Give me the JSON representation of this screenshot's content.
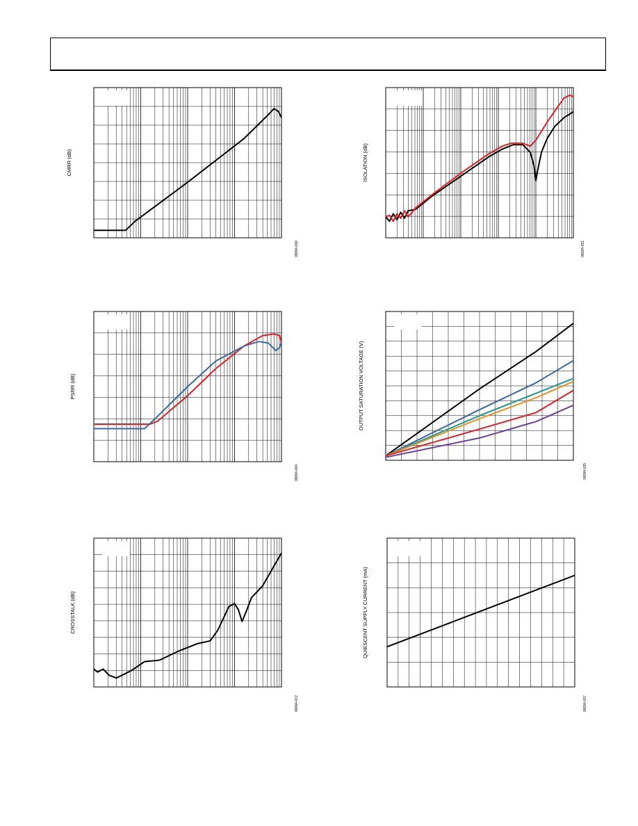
{
  "header": {
    "title": ""
  },
  "chart_data": [
    {
      "id": "cmrr",
      "type": "line",
      "title": "",
      "xlabel": "",
      "ylabel": "CMRR (dB)",
      "figure_id": "08094-030",
      "x_scale": "log",
      "x_decades": 4,
      "y_divisions": 8,
      "grid": true,
      "series": [
        {
          "color": "#000000",
          "points": [
            [
              0,
              0.05
            ],
            [
              0.17,
              0.05
            ],
            [
              0.22,
              0.11
            ],
            [
              0.5,
              0.37
            ],
            [
              0.8,
              0.66
            ],
            [
              0.93,
              0.82
            ],
            [
              0.96,
              0.86
            ],
            [
              0.985,
              0.84
            ],
            [
              1,
              0.8
            ]
          ]
        }
      ]
    },
    {
      "id": "isolation",
      "type": "line",
      "title": "",
      "xlabel": "",
      "ylabel": "ISOLATION (dB)",
      "figure_id": "08094-031",
      "x_scale": "log",
      "x_decades": 5,
      "y_divisions": 7,
      "grid": true,
      "series": [
        {
          "color": "#000000",
          "points": [
            [
              0,
              0.14
            ],
            [
              0.02,
              0.11
            ],
            [
              0.04,
              0.16
            ],
            [
              0.06,
              0.12
            ],
            [
              0.08,
              0.17
            ],
            [
              0.1,
              0.13
            ],
            [
              0.12,
              0.18
            ],
            [
              0.16,
              0.19
            ],
            [
              0.25,
              0.28
            ],
            [
              0.4,
              0.41
            ],
            [
              0.55,
              0.54
            ],
            [
              0.62,
              0.59
            ],
            [
              0.68,
              0.62
            ],
            [
              0.73,
              0.62
            ],
            [
              0.77,
              0.57
            ],
            [
              0.79,
              0.48
            ],
            [
              0.8,
              0.38
            ],
            [
              0.81,
              0.45
            ],
            [
              0.83,
              0.57
            ],
            [
              0.86,
              0.66
            ],
            [
              0.9,
              0.74
            ],
            [
              0.95,
              0.8
            ],
            [
              1,
              0.84
            ]
          ]
        },
        {
          "color": "#e41e26",
          "points": [
            [
              0,
              0.14
            ],
            [
              0.02,
              0.15
            ],
            [
              0.04,
              0.11
            ],
            [
              0.06,
              0.16
            ],
            [
              0.08,
              0.13
            ],
            [
              0.1,
              0.18
            ],
            [
              0.12,
              0.14
            ],
            [
              0.16,
              0.2
            ],
            [
              0.25,
              0.29
            ],
            [
              0.4,
              0.43
            ],
            [
              0.55,
              0.56
            ],
            [
              0.62,
              0.61
            ],
            [
              0.67,
              0.63
            ],
            [
              0.73,
              0.63
            ],
            [
              0.77,
              0.61
            ],
            [
              0.8,
              0.65
            ],
            [
              0.86,
              0.77
            ],
            [
              0.91,
              0.86
            ],
            [
              0.95,
              0.93
            ],
            [
              0.98,
              0.95
            ],
            [
              1,
              0.94
            ]
          ]
        }
      ]
    },
    {
      "id": "psrr",
      "type": "line",
      "title": "",
      "xlabel": "",
      "ylabel": "PSRR (dB)",
      "figure_id": "08094-034",
      "x_scale": "log",
      "x_decades": 4,
      "y_divisions": 7,
      "grid": true,
      "series": [
        {
          "color": "#e41e26",
          "points": [
            [
              0,
              0.25
            ],
            [
              0.3,
              0.25
            ],
            [
              0.34,
              0.27
            ],
            [
              0.5,
              0.44
            ],
            [
              0.65,
              0.62
            ],
            [
              0.8,
              0.77
            ],
            [
              0.9,
              0.84
            ],
            [
              0.96,
              0.85
            ],
            [
              0.99,
              0.84
            ],
            [
              1,
              0.79
            ]
          ]
        },
        {
          "color": "#3a67a8",
          "points": [
            [
              0,
              0.22
            ],
            [
              0.27,
              0.22
            ],
            [
              0.33,
              0.29
            ],
            [
              0.5,
              0.5
            ],
            [
              0.65,
              0.67
            ],
            [
              0.8,
              0.77
            ],
            [
              0.88,
              0.8
            ],
            [
              0.93,
              0.79
            ],
            [
              0.97,
              0.74
            ],
            [
              0.99,
              0.76
            ],
            [
              1,
              0.8
            ]
          ]
        }
      ]
    },
    {
      "id": "output-saturation",
      "type": "line",
      "title": "",
      "xlabel": "",
      "ylabel": "OUTPUT SATURATION VOLTAGE (V)",
      "figure_id": "08094-035",
      "x_scale": "linear",
      "x_divisions": 12,
      "y_divisions": 10,
      "grid": true,
      "series": [
        {
          "color": "#000000",
          "points": [
            [
              0,
              0.03
            ],
            [
              0.5,
              0.48
            ],
            [
              0.8,
              0.73
            ],
            [
              1,
              0.92
            ]
          ]
        },
        {
          "color": "#3a67a8",
          "points": [
            [
              0,
              0.03
            ],
            [
              0.5,
              0.34
            ],
            [
              0.8,
              0.52
            ],
            [
              1,
              0.67
            ]
          ]
        },
        {
          "color": "#1a9a8a",
          "points": [
            [
              0,
              0.03
            ],
            [
              0.5,
              0.3
            ],
            [
              0.8,
              0.45
            ],
            [
              1,
              0.55
            ]
          ]
        },
        {
          "color": "#f08c1e",
          "points": [
            [
              0,
              0.03
            ],
            [
              0.5,
              0.28
            ],
            [
              0.8,
              0.42
            ],
            [
              1,
              0.53
            ]
          ]
        },
        {
          "color": "#e41e26",
          "points": [
            [
              0,
              0.03
            ],
            [
              0.5,
              0.21
            ],
            [
              0.8,
              0.32
            ],
            [
              1,
              0.47
            ]
          ]
        },
        {
          "color": "#6b3fa0",
          "points": [
            [
              0,
              0.02
            ],
            [
              0.5,
              0.15
            ],
            [
              0.8,
              0.26
            ],
            [
              1,
              0.37
            ]
          ]
        }
      ]
    },
    {
      "id": "crosstalk",
      "type": "line",
      "title": "",
      "xlabel": "",
      "ylabel": "CROSSTALK (dB)",
      "figure_id": "08094-072",
      "x_scale": "log",
      "x_decades": 4,
      "y_divisions": 9,
      "grid": true,
      "series": [
        {
          "color": "#000000",
          "points": [
            [
              0,
              0.12
            ],
            [
              0.02,
              0.1
            ],
            [
              0.05,
              0.12
            ],
            [
              0.08,
              0.08
            ],
            [
              0.12,
              0.06
            ],
            [
              0.2,
              0.11
            ],
            [
              0.27,
              0.17
            ],
            [
              0.35,
              0.18
            ],
            [
              0.45,
              0.24
            ],
            [
              0.55,
              0.29
            ],
            [
              0.62,
              0.31
            ],
            [
              0.66,
              0.38
            ],
            [
              0.69,
              0.46
            ],
            [
              0.72,
              0.54
            ],
            [
              0.75,
              0.56
            ],
            [
              0.77,
              0.52
            ],
            [
              0.79,
              0.44
            ],
            [
              0.81,
              0.5
            ],
            [
              0.84,
              0.6
            ],
            [
              0.9,
              0.68
            ],
            [
              0.95,
              0.79
            ],
            [
              1,
              0.9
            ]
          ]
        }
      ]
    },
    {
      "id": "quiescent-current",
      "type": "line",
      "title": "",
      "xlabel": "",
      "ylabel": "QUIESCENT SUPPLY CURRENT (mA)",
      "figure_id": "08094-037",
      "x_scale": "linear",
      "x_divisions": 17,
      "y_divisions": 6,
      "grid": true,
      "series": [
        {
          "color": "#000000",
          "points": [
            [
              0,
              0.27
            ],
            [
              1,
              0.75
            ]
          ]
        }
      ]
    }
  ]
}
